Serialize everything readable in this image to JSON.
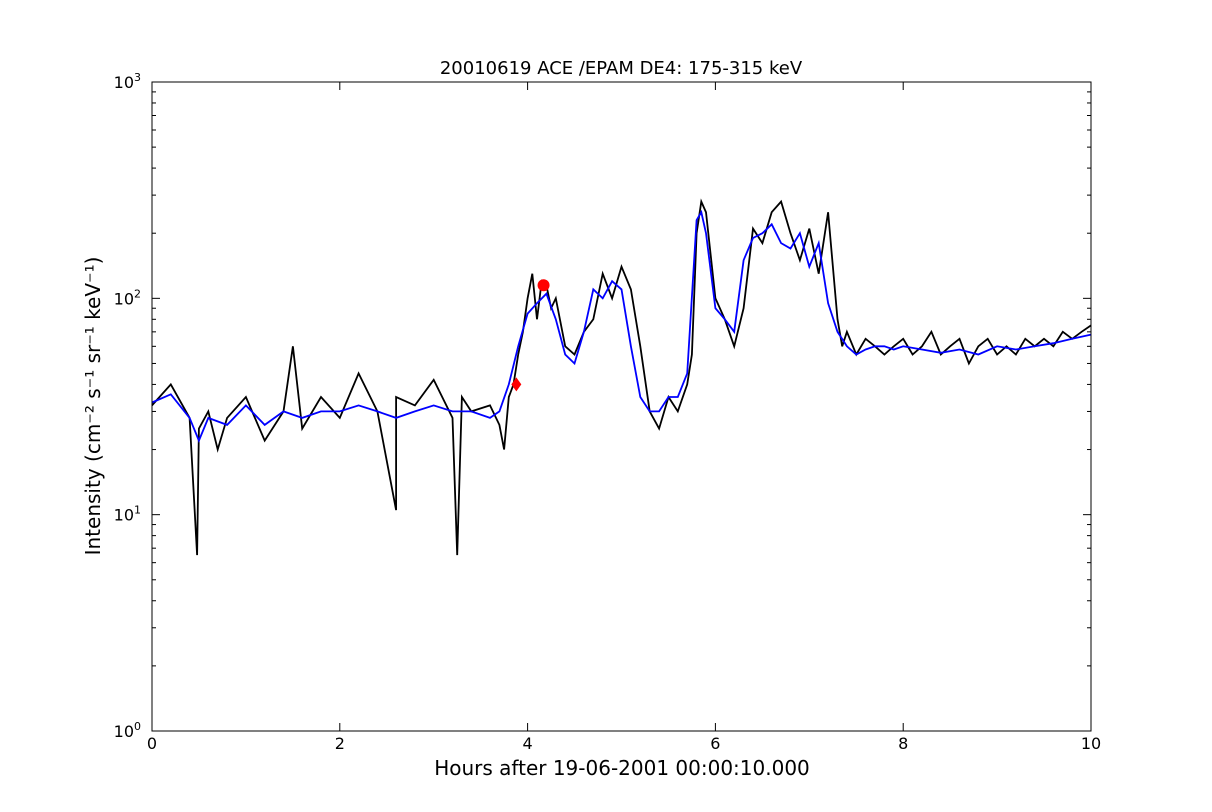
{
  "chart_data": {
    "type": "line",
    "title": "20010619 ACE /EPAM DE4: 175-315 keV",
    "xlabel": "Hours after 19-06-2001 00:00:10.000",
    "ylabel": "Intensity (cm⁻² s⁻¹ sr⁻¹ keV⁻¹)",
    "xlim": [
      0,
      10
    ],
    "ylim": [
      1,
      1000
    ],
    "yscale": "log",
    "grid": false,
    "xticks": [
      {
        "v": 0,
        "label": "0"
      },
      {
        "v": 2,
        "label": "2"
      },
      {
        "v": 4,
        "label": "4"
      },
      {
        "v": 6,
        "label": "6"
      },
      {
        "v": 8,
        "label": "8"
      },
      {
        "v": 10,
        "label": "10"
      }
    ],
    "yticks": [
      {
        "v": 1,
        "base": "10",
        "exp": "0"
      },
      {
        "v": 10,
        "base": "10",
        "exp": "1"
      },
      {
        "v": 100,
        "base": "10",
        "exp": "2"
      },
      {
        "v": 1000,
        "base": "10",
        "exp": "3"
      }
    ],
    "series": [
      {
        "color": "#000000",
        "x": [
          0.0,
          0.2,
          0.4,
          0.48,
          0.5,
          0.6,
          0.7,
          0.8,
          1.0,
          1.2,
          1.4,
          1.5,
          1.6,
          1.8,
          2.0,
          2.2,
          2.4,
          2.6,
          2.6,
          2.8,
          3.0,
          3.2,
          3.25,
          3.3,
          3.4,
          3.6,
          3.7,
          3.75,
          3.8,
          3.85,
          3.9,
          3.95,
          4.0,
          4.05,
          4.1,
          4.15,
          4.2,
          4.25,
          4.3,
          4.4,
          4.5,
          4.6,
          4.7,
          4.8,
          4.9,
          5.0,
          5.1,
          5.2,
          5.3,
          5.4,
          5.5,
          5.6,
          5.7,
          5.75,
          5.8,
          5.85,
          5.9,
          6.0,
          6.1,
          6.2,
          6.3,
          6.4,
          6.5,
          6.6,
          6.7,
          6.8,
          6.9,
          7.0,
          7.1,
          7.2,
          7.3,
          7.35,
          7.4,
          7.5,
          7.6,
          7.7,
          7.8,
          7.9,
          8.0,
          8.1,
          8.2,
          8.3,
          8.4,
          8.5,
          8.6,
          8.7,
          8.8,
          8.9,
          9.0,
          9.1,
          9.2,
          9.3,
          9.4,
          9.5,
          9.6,
          9.7,
          9.8,
          9.9,
          10.0
        ],
        "y": [
          32,
          40,
          28,
          6.5,
          25,
          30,
          20,
          28,
          35,
          22,
          30,
          60,
          25,
          35,
          28,
          45,
          30,
          10.5,
          35,
          32,
          42,
          28,
          6.5,
          35,
          30,
          32,
          26,
          20,
          35,
          40,
          55,
          70,
          100,
          130,
          80,
          120,
          115,
          90,
          100,
          60,
          55,
          70,
          80,
          130,
          100,
          140,
          110,
          60,
          30,
          25,
          35,
          30,
          40,
          55,
          200,
          280,
          250,
          100,
          80,
          60,
          90,
          210,
          180,
          250,
          280,
          200,
          150,
          210,
          130,
          250,
          80,
          60,
          70,
          55,
          65,
          60,
          55,
          60,
          65,
          55,
          60,
          70,
          55,
          60,
          65,
          50,
          60,
          65,
          55,
          60,
          55,
          65,
          60,
          65,
          60,
          70,
          65,
          70,
          75
        ]
      },
      {
        "color": "#0000ff",
        "x": [
          0.0,
          0.2,
          0.4,
          0.5,
          0.6,
          0.8,
          1.0,
          1.2,
          1.4,
          1.6,
          1.8,
          2.0,
          2.2,
          2.4,
          2.6,
          2.8,
          3.0,
          3.2,
          3.4,
          3.6,
          3.7,
          3.8,
          3.9,
          4.0,
          4.1,
          4.2,
          4.3,
          4.4,
          4.5,
          4.6,
          4.7,
          4.8,
          4.9,
          5.0,
          5.1,
          5.2,
          5.3,
          5.4,
          5.5,
          5.6,
          5.7,
          5.8,
          5.85,
          5.9,
          6.0,
          6.1,
          6.2,
          6.3,
          6.4,
          6.5,
          6.6,
          6.7,
          6.8,
          6.9,
          7.0,
          7.1,
          7.2,
          7.3,
          7.4,
          7.5,
          7.6,
          7.7,
          7.8,
          7.9,
          8.0,
          8.2,
          8.4,
          8.6,
          8.8,
          9.0,
          9.2,
          9.4,
          9.6,
          9.8,
          10.0
        ],
        "y": [
          33,
          36,
          28,
          22,
          28,
          26,
          32,
          26,
          30,
          28,
          30,
          30,
          32,
          30,
          28,
          30,
          32,
          30,
          30,
          28,
          30,
          40,
          60,
          85,
          95,
          105,
          80,
          55,
          50,
          70,
          110,
          100,
          120,
          110,
          60,
          35,
          30,
          30,
          35,
          35,
          45,
          230,
          250,
          200,
          90,
          80,
          70,
          150,
          190,
          200,
          220,
          180,
          170,
          200,
          140,
          180,
          95,
          70,
          60,
          55,
          58,
          60,
          60,
          58,
          60,
          58,
          56,
          58,
          55,
          60,
          58,
          60,
          62,
          65,
          68
        ]
      }
    ],
    "markers": [
      {
        "x": 3.88,
        "y": 40,
        "shape": "diamond",
        "color": "#ff0000"
      },
      {
        "x": 4.17,
        "y": 115,
        "shape": "circle",
        "color": "#ff0000"
      }
    ]
  }
}
